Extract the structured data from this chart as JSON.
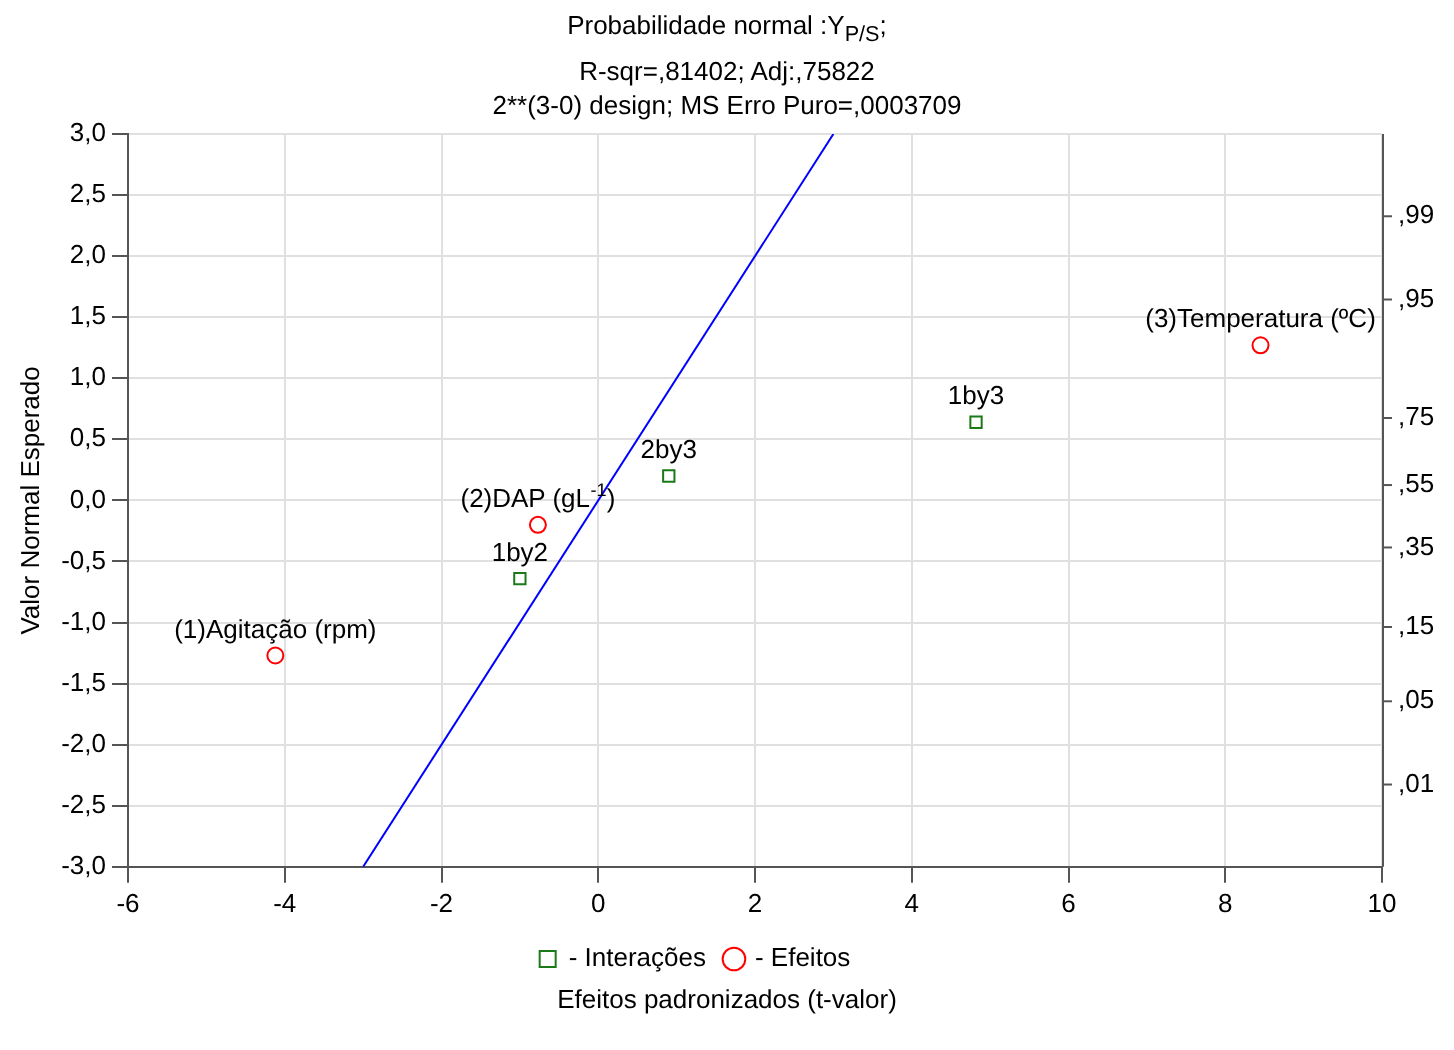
{
  "chart_data": {
    "type": "scatter",
    "title": "Probabilidade normal :Y$_{P/S}$;",
    "subtitle": "R-sqr=,81402; Adj:,75822\n2**(3-0) design; MS Erro Puro=,0003709",
    "xlabel": "Efeitos padronizados (t-valor)",
    "ylabel": "Valor Normal Esperado",
    "xlim": [
      -6,
      10
    ],
    "xticks": [
      -6,
      -4,
      -2,
      0,
      2,
      4,
      6,
      8,
      10
    ],
    "ylim": [
      -3,
      3
    ],
    "yticks": [
      {
        "value": -3,
        "label": "-3,0"
      },
      {
        "value": -2.5,
        "label": "-2,5"
      },
      {
        "value": -2,
        "label": "-2,0"
      },
      {
        "value": -1.5,
        "label": "-1,5"
      },
      {
        "value": -1,
        "label": "-1,0"
      },
      {
        "value": -0.5,
        "label": "-0,5"
      },
      {
        "value": 0,
        "label": "0,0"
      },
      {
        "value": 0.5,
        "label": "0,5"
      },
      {
        "value": 1,
        "label": "1,0"
      },
      {
        "value": 1.5,
        "label": "1,5"
      },
      {
        "value": 2,
        "label": "2,0"
      },
      {
        "value": 2.5,
        "label": "2,5"
      },
      {
        "value": 3,
        "label": "3,0"
      }
    ],
    "grid": true,
    "legend": "bottom",
    "series": [
      {
        "name": "- Interações",
        "marker": "square",
        "color": "#1a7a1a",
        "x": [
          -1.0,
          0.9,
          4.82
        ],
        "values": [
          -0.64,
          0.2,
          0.64
        ]
      },
      {
        "name": "- Efeitos",
        "marker": "circle",
        "color": "#ff0000",
        "x": [
          -4.12,
          -0.77,
          8.45
        ],
        "values": [
          -1.27,
          -0.2,
          1.27
        ]
      },
      {
        "type": "line",
        "marker": "none",
        "color": "#0000ff",
        "x": [
          -3,
          3
        ],
        "values": [
          -3,
          3
        ]
      }
    ],
    "annotations": [
      {
        "text": "(1)Agitação (rpm)",
        "x": -4.12,
        "y": -1.27
      },
      {
        "text": "(2)DAP (gL$^{-1}$)",
        "x": -0.77,
        "y": -0.2
      },
      {
        "text": "(3)Temperatura (ºC)",
        "x": 8.45,
        "y": 1.27
      },
      {
        "text": "1by2",
        "x": -1.0,
        "y": -0.64
      },
      {
        "text": "2by3",
        "x": 0.9,
        "y": 0.2
      },
      {
        "text": "1by3",
        "x": 4.82,
        "y": 0.64
      },
      ",01",
      ",05",
      ",15",
      ",35",
      ",55",
      ",75",
      ",95",
      ",99"
    ]
  }
}
